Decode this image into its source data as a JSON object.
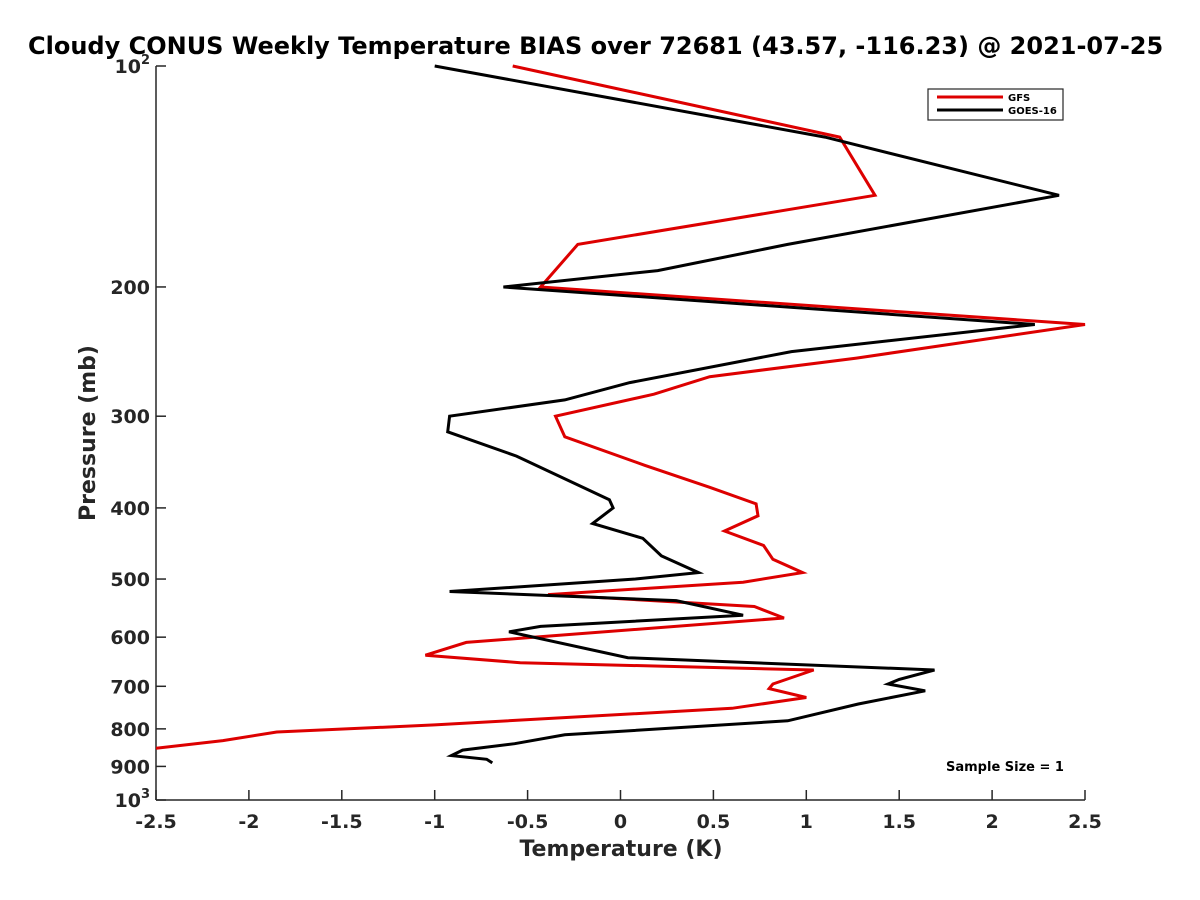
{
  "chart_data": {
    "type": "line",
    "title": "Cloudy CONUS Weekly Temperature BIAS over 72681 (43.57, -116.23) @ 2021-07-25",
    "xlabel": "Temperature (K)",
    "ylabel": "Pressure (mb)",
    "xlim": [
      -2.5,
      2.5
    ],
    "ylim": [
      100,
      1000
    ],
    "y_scale": "log",
    "y_reversed": true,
    "x_ticks": [
      -2.5,
      -2,
      -1.5,
      -1,
      -0.5,
      0,
      0.5,
      1,
      1.5,
      2,
      2.5
    ],
    "x_tick_labels": [
      "-2.5",
      "-2",
      "-1.5",
      "-1",
      "-0.5",
      "0",
      "0.5",
      "1",
      "1.5",
      "2",
      "2.5"
    ],
    "y_ticks": [
      100,
      200,
      300,
      400,
      500,
      600,
      700,
      800,
      900,
      1000
    ],
    "y_tick_labels": [
      {
        "base": "10",
        "exp": "2"
      },
      {
        "base": "200"
      },
      {
        "base": "300"
      },
      {
        "base": "400"
      },
      {
        "base": "500"
      },
      {
        "base": "600"
      },
      {
        "base": "700"
      },
      {
        "base": "800"
      },
      {
        "base": "900"
      },
      {
        "base": "10",
        "exp": "3"
      }
    ],
    "grid": false,
    "legend_position": "top-right",
    "annotation": "Sample Size = 1",
    "series": [
      {
        "name": "GFS",
        "color": "#dd0000",
        "points": [
          [
            -0.58,
            100
          ],
          [
            1.18,
            125
          ],
          [
            1.37,
            150
          ],
          [
            -0.23,
            175
          ],
          [
            -0.43,
            200
          ],
          [
            2.5,
            225
          ],
          [
            1.27,
            250
          ],
          [
            0.48,
            265
          ],
          [
            0.18,
            280
          ],
          [
            -0.35,
            300
          ],
          [
            -0.3,
            320
          ],
          [
            0.13,
            350
          ],
          [
            0.48,
            375
          ],
          [
            0.73,
            395
          ],
          [
            0.74,
            410
          ],
          [
            0.56,
            430
          ],
          [
            0.77,
            450
          ],
          [
            0.82,
            470
          ],
          [
            0.98,
            490
          ],
          [
            0.66,
            505
          ],
          [
            -0.39,
            525
          ],
          [
            0.72,
            545
          ],
          [
            0.88,
            565
          ],
          [
            -0.83,
            610
          ],
          [
            -1.05,
            635
          ],
          [
            -0.54,
            650
          ],
          [
            1.04,
            665
          ],
          [
            0.82,
            695
          ],
          [
            0.8,
            705
          ],
          [
            1.0,
            725
          ],
          [
            0.6,
            750
          ],
          [
            -1.0,
            790
          ],
          [
            -1.85,
            808
          ],
          [
            -2.14,
            830
          ],
          [
            -2.5,
            850
          ]
        ]
      },
      {
        "name": "GOES-16",
        "color": "#000000",
        "points": [
          [
            -1.0,
            100
          ],
          [
            1.1,
            125
          ],
          [
            2.36,
            150
          ],
          [
            0.9,
            175
          ],
          [
            0.2,
            190
          ],
          [
            -0.63,
            200
          ],
          [
            2.23,
            225
          ],
          [
            0.92,
            245
          ],
          [
            0.05,
            270
          ],
          [
            -0.3,
            285
          ],
          [
            -0.92,
            300
          ],
          [
            -0.93,
            315
          ],
          [
            -0.56,
            340
          ],
          [
            -0.06,
            390
          ],
          [
            -0.04,
            400
          ],
          [
            -0.15,
            420
          ],
          [
            0.12,
            440
          ],
          [
            0.22,
            465
          ],
          [
            0.42,
            490
          ],
          [
            0.08,
            500
          ],
          [
            -0.92,
            520
          ],
          [
            0.3,
            535
          ],
          [
            0.66,
            560
          ],
          [
            -0.43,
            580
          ],
          [
            -0.6,
            590
          ],
          [
            0.04,
            640
          ],
          [
            1.69,
            665
          ],
          [
            1.5,
            685
          ],
          [
            1.44,
            695
          ],
          [
            1.64,
            710
          ],
          [
            1.28,
            740
          ],
          [
            0.9,
            780
          ],
          [
            -0.3,
            815
          ],
          [
            -0.57,
            838
          ],
          [
            -0.85,
            855
          ],
          [
            -0.91,
            870
          ],
          [
            -0.72,
            880
          ],
          [
            -0.69,
            890
          ]
        ]
      }
    ]
  }
}
